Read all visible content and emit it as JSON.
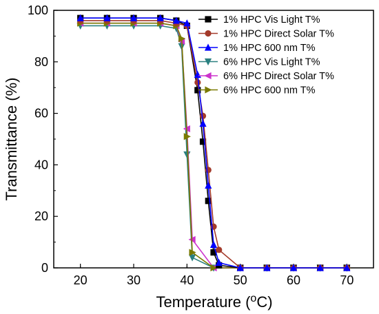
{
  "chart_data": {
    "type": "line",
    "title": "",
    "xlabel": "Temperature (",
    "xlabel_unit_sup": "o",
    "xlabel_unit_rest": "C)",
    "ylabel": "Transmittance (%)",
    "xlim": [
      15,
      75
    ],
    "ylim": [
      0,
      100
    ],
    "xticks": [
      20,
      30,
      40,
      50,
      60,
      70
    ],
    "yticks": [
      0,
      20,
      40,
      60,
      80,
      100
    ],
    "grid": false,
    "legend_position": "top-right",
    "series": [
      {
        "name": "1% HPC Vis Light T%",
        "color": "#000000",
        "marker": "square",
        "x": [
          20,
          25,
          30,
          35,
          38,
          40,
          42,
          43,
          44,
          45,
          46,
          50,
          55,
          60,
          65,
          70
        ],
        "y": [
          97,
          97,
          97,
          97,
          96,
          94,
          69,
          49,
          26,
          6,
          1,
          0,
          0,
          0,
          0,
          0
        ]
      },
      {
        "name": "1% HPC Direct Solar T%",
        "color": "#a33a2a",
        "marker": "circle",
        "x": [
          20,
          25,
          30,
          35,
          38,
          40,
          42,
          43,
          44,
          45,
          46,
          50,
          55,
          60,
          65,
          70
        ],
        "y": [
          96,
          96,
          96,
          96,
          95,
          94,
          72,
          59,
          38,
          16,
          7,
          0,
          0,
          0,
          0,
          0
        ]
      },
      {
        "name": "1% HPC 600 nm T%",
        "color": "#0000ff",
        "marker": "triangle-up",
        "x": [
          20,
          25,
          30,
          35,
          38,
          40,
          42,
          43,
          44,
          45,
          46,
          50,
          55,
          60,
          65,
          70
        ],
        "y": [
          97,
          97,
          97,
          97,
          96,
          95,
          75,
          56,
          32,
          9,
          2,
          0,
          0,
          0,
          0,
          0
        ]
      },
      {
        "name": "6% HPC Vis Light T%",
        "color": "#2a8080",
        "marker": "triangle-down",
        "x": [
          20,
          25,
          30,
          35,
          38,
          39,
          40,
          41,
          45,
          50,
          55,
          60,
          65,
          70
        ],
        "y": [
          94,
          94,
          94,
          94,
          93,
          86,
          44,
          4,
          0,
          0,
          0,
          0,
          0,
          0
        ]
      },
      {
        "name": "6% HPC Direct Solar T%",
        "color": "#cc33cc",
        "marker": "triangle-left",
        "x": [
          20,
          25,
          30,
          35,
          38,
          39,
          40,
          41,
          45,
          50,
          55,
          60,
          65,
          70
        ],
        "y": [
          95,
          95,
          95,
          95,
          94,
          88,
          54,
          11,
          0,
          0,
          0,
          0,
          0,
          0
        ]
      },
      {
        "name": "6% HPC 600 nm T%",
        "color": "#7a7a00",
        "marker": "triangle-right",
        "x": [
          20,
          25,
          30,
          35,
          38,
          39,
          40,
          41,
          45,
          50,
          55,
          60,
          65,
          70
        ],
        "y": [
          95,
          95,
          95,
          95,
          94,
          89,
          51,
          6,
          0,
          0,
          0,
          0,
          0,
          0
        ]
      }
    ]
  }
}
